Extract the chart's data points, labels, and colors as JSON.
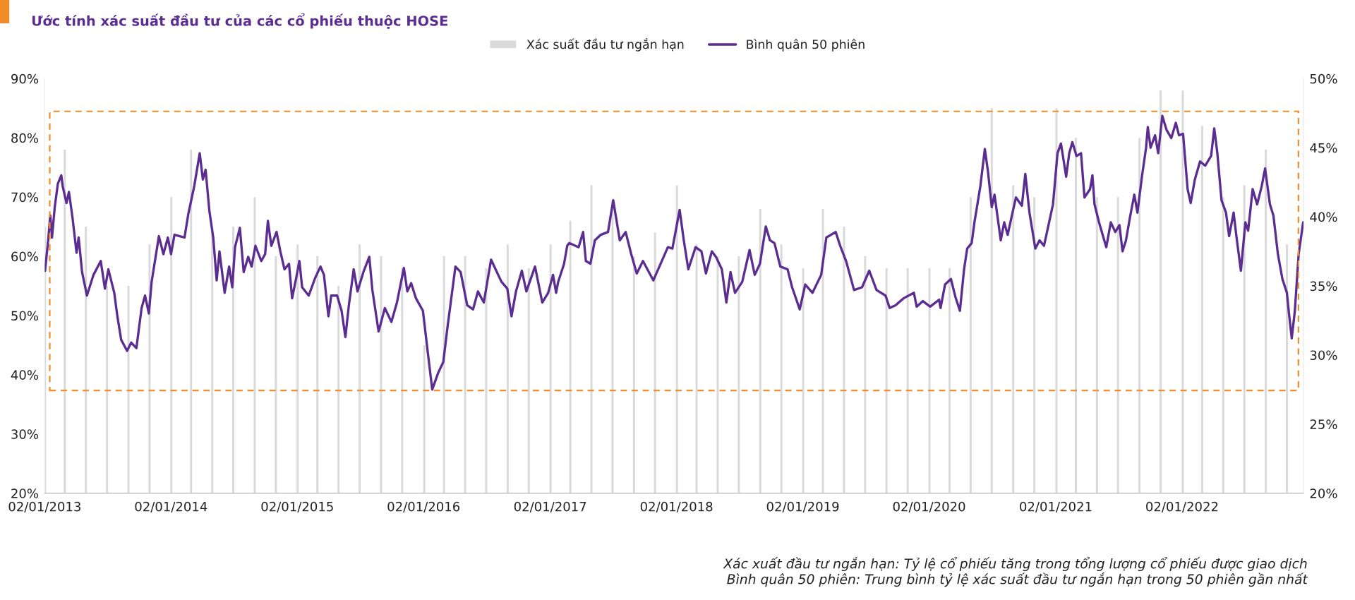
{
  "chart_data": {
    "type": "line",
    "title": "Ước tính xác suất đầu tư của các cổ phiếu thuộc HOSE",
    "annotations": [
      "Xác xuất đầu tư ngắn hạn: Tỷ lệ cổ phiếu tăng trong tổng lượng cổ phiếu được giao dịch",
      "Bình quân 50 phiên: Trung bình tỷ lệ xác suất đầu tư ngắn hạn trong 50 phiên gần nhất"
    ],
    "legend": "top",
    "grid": false,
    "marker": "none",
    "line_style": "solid",
    "xlim": [
      "2013-01-02",
      "2022-12-19"
    ],
    "xticks": [
      {
        "value": "2013-01-02",
        "label": "02/01/2013"
      },
      {
        "value": "2014-01-02",
        "label": "02/01/2014"
      },
      {
        "value": "2015-01-02",
        "label": "02/01/2015"
      },
      {
        "value": "2016-01-02",
        "label": "02/01/2016"
      },
      {
        "value": "2017-01-02",
        "label": "02/01/2017"
      },
      {
        "value": "2018-01-02",
        "label": "02/01/2018"
      },
      {
        "value": "2019-01-02",
        "label": "02/01/2019"
      },
      {
        "value": "2020-01-02",
        "label": "02/01/2020"
      },
      {
        "value": "2021-01-02",
        "label": "02/01/2021"
      },
      {
        "value": "2022-01-02",
        "label": "02/01/2022"
      }
    ],
    "ylim": [
      20,
      90
    ],
    "yticks": [
      {
        "value": 20,
        "label": "20%"
      },
      {
        "value": 30,
        "label": "30%"
      },
      {
        "value": 40,
        "label": "40%"
      },
      {
        "value": 50,
        "label": "50%"
      },
      {
        "value": 60,
        "label": "60%"
      },
      {
        "value": 70,
        "label": "70%"
      },
      {
        "value": 80,
        "label": "80%"
      },
      {
        "value": 90,
        "label": "90%"
      }
    ],
    "y2lim": [
      20,
      50
    ],
    "y2ticks": [
      {
        "value": 20,
        "label": "20%"
      },
      {
        "value": 25,
        "label": "25%"
      },
      {
        "value": 30,
        "label": "30%"
      },
      {
        "value": 35,
        "label": "35%"
      },
      {
        "value": 40,
        "label": "40%"
      },
      {
        "value": 45,
        "label": "45%"
      },
      {
        "value": 50,
        "label": "50%"
      }
    ],
    "series": [
      {
        "name": "Xác suất đầu tư ngắn hạn",
        "type": "bar",
        "color": "#d9d9d9",
        "x": [
          "2013-01-03",
          "2013-03-01",
          "2013-05-01",
          "2013-07-01",
          "2013-09-01",
          "2013-11-01",
          "2014-01-03",
          "2014-03-01",
          "2014-05-01",
          "2014-07-01",
          "2014-09-01",
          "2014-11-01",
          "2015-01-03",
          "2015-03-01",
          "2015-05-01",
          "2015-07-01",
          "2015-09-01",
          "2015-11-01",
          "2016-01-04",
          "2016-03-01",
          "2016-05-01",
          "2016-07-01",
          "2016-09-01",
          "2016-11-01",
          "2017-01-03",
          "2017-03-01",
          "2017-05-01",
          "2017-07-01",
          "2017-09-01",
          "2017-11-01",
          "2018-01-03",
          "2018-03-01",
          "2018-05-01",
          "2018-07-01",
          "2018-09-01",
          "2018-11-01",
          "2019-01-03",
          "2019-03-01",
          "2019-05-01",
          "2019-07-01",
          "2019-09-01",
          "2019-11-01",
          "2020-01-03",
          "2020-03-01",
          "2020-05-01",
          "2020-07-01",
          "2020-09-01",
          "2020-11-01",
          "2021-01-04",
          "2021-03-01",
          "2021-05-01",
          "2021-07-01",
          "2021-09-01",
          "2021-11-01",
          "2022-01-04",
          "2022-03-01",
          "2022-05-01",
          "2022-07-01",
          "2022-09-01",
          "2022-11-01"
        ],
        "values": [
          65,
          78,
          65,
          55,
          55,
          62,
          70,
          78,
          65,
          65,
          70,
          60,
          62,
          60,
          55,
          62,
          60,
          58,
          45,
          60,
          60,
          58,
          62,
          58,
          62,
          66,
          72,
          68,
          60,
          64,
          72,
          62,
          60,
          60,
          68,
          62,
          58,
          68,
          65,
          60,
          58,
          58,
          58,
          58,
          70,
          85,
          72,
          70,
          85,
          80,
          70,
          70,
          80,
          88,
          88,
          82,
          70,
          72,
          78,
          62
        ]
      },
      {
        "name": "Bình quân 50 phiên",
        "axis": "y2",
        "color": "#5c2d91",
        "x": [
          "2013-01-03",
          "2013-01-12",
          "2013-01-18",
          "2013-01-23",
          "2013-01-31",
          "2013-02-09",
          "2013-02-19",
          "2013-02-23",
          "2013-03-06",
          "2013-03-13",
          "2013-03-23",
          "2013-04-04",
          "2013-04-10",
          "2013-04-20",
          "2013-05-04",
          "2013-05-23",
          "2013-06-13",
          "2013-06-25",
          "2013-07-05",
          "2013-07-22",
          "2013-07-31",
          "2013-08-11",
          "2013-08-28",
          "2013-09-09",
          "2013-09-24",
          "2013-10-09",
          "2013-10-19",
          "2013-10-30",
          "2013-11-07",
          "2013-11-28",
          "2013-12-11",
          "2013-12-24",
          "2014-01-02",
          "2014-01-12",
          "2014-01-27",
          "2014-02-10",
          "2014-02-21",
          "2014-03-10",
          "2014-03-26",
          "2014-04-04",
          "2014-04-12",
          "2014-04-23",
          "2014-05-04",
          "2014-05-14",
          "2014-05-22",
          "2014-06-06",
          "2014-06-19",
          "2014-06-28",
          "2014-07-06",
          "2014-07-20",
          "2014-07-31",
          "2014-08-13",
          "2014-08-23",
          "2014-09-03",
          "2014-09-20",
          "2014-10-01",
          "2014-10-09",
          "2014-10-19",
          "2014-11-03",
          "2014-11-14",
          "2014-11-26",
          "2014-12-09",
          "2014-12-18",
          "2014-12-30",
          "2015-01-08",
          "2015-01-16",
          "2015-02-04",
          "2015-02-23",
          "2015-03-10",
          "2015-03-20",
          "2015-04-02",
          "2015-04-10",
          "2015-04-27",
          "2015-05-10",
          "2015-05-21",
          "2015-05-31",
          "2015-06-14",
          "2015-06-25",
          "2015-07-12",
          "2015-07-29",
          "2015-08-07",
          "2015-08-25",
          "2015-09-12",
          "2015-10-01",
          "2015-10-17",
          "2015-11-06",
          "2015-11-16",
          "2015-11-27",
          "2015-12-11",
          "2015-12-31",
          "2016-01-15",
          "2016-01-27",
          "2016-02-13",
          "2016-02-28",
          "2016-03-11",
          "2016-04-03",
          "2016-04-18",
          "2016-05-07",
          "2016-05-24",
          "2016-06-07",
          "2016-06-24",
          "2016-07-15",
          "2016-07-28",
          "2016-08-14",
          "2016-08-31",
          "2016-09-12",
          "2016-09-25",
          "2016-10-12",
          "2016-10-25",
          "2016-11-19",
          "2016-12-10",
          "2016-12-27",
          "2017-01-10",
          "2017-01-19",
          "2017-01-25",
          "2017-02-11",
          "2017-02-20",
          "2017-02-26",
          "2017-03-25",
          "2017-04-07",
          "2017-04-15",
          "2017-04-28",
          "2017-05-11",
          "2017-05-28",
          "2017-06-18",
          "2017-07-03",
          "2017-07-22",
          "2017-08-08",
          "2017-08-24",
          "2017-09-09",
          "2017-09-27",
          "2017-10-27",
          "2017-11-17",
          "2017-12-08",
          "2017-12-21",
          "2018-01-11",
          "2018-01-23",
          "2018-02-05",
          "2018-02-26",
          "2018-03-15",
          "2018-03-28",
          "2018-04-14",
          "2018-04-26",
          "2018-05-13",
          "2018-05-26",
          "2018-06-07",
          "2018-06-20",
          "2018-07-11",
          "2018-08-01",
          "2018-08-16",
          "2018-08-31",
          "2018-09-17",
          "2018-09-29",
          "2018-10-12",
          "2018-10-29",
          "2018-11-19",
          "2018-12-02",
          "2018-12-24",
          "2019-01-09",
          "2019-01-30",
          "2019-02-24",
          "2019-03-11",
          "2019-04-07",
          "2019-04-20",
          "2019-05-07",
          "2019-05-30",
          "2019-06-22",
          "2019-07-13",
          "2019-08-03",
          "2019-08-29",
          "2019-09-10",
          "2019-09-27",
          "2019-10-20",
          "2019-11-19",
          "2019-11-27",
          "2019-12-15",
          "2020-01-05",
          "2020-01-31",
          "2020-02-04",
          "2020-02-17",
          "2020-03-05",
          "2020-03-18",
          "2020-03-31",
          "2020-04-12",
          "2020-04-21",
          "2020-05-04",
          "2020-05-12",
          "2020-05-29",
          "2020-06-11",
          "2020-06-20",
          "2020-07-01",
          "2020-07-09",
          "2020-07-27",
          "2020-08-06",
          "2020-08-16",
          "2020-08-30",
          "2020-09-09",
          "2020-09-26",
          "2020-10-06",
          "2020-10-18",
          "2020-11-04",
          "2020-11-16",
          "2020-11-29",
          "2020-12-12",
          "2020-12-25",
          "2021-01-07",
          "2021-01-17",
          "2021-01-24",
          "2021-02-01",
          "2021-02-10",
          "2021-02-19",
          "2021-03-03",
          "2021-03-16",
          "2021-03-26",
          "2021-04-11",
          "2021-04-18",
          "2021-04-24",
          "2021-05-07",
          "2021-05-28",
          "2021-06-10",
          "2021-06-23",
          "2021-07-05",
          "2021-07-14",
          "2021-07-24",
          "2021-08-04",
          "2021-08-17",
          "2021-08-26",
          "2021-09-08",
          "2021-09-20",
          "2021-09-25",
          "2021-10-03",
          "2021-10-16",
          "2021-10-25",
          "2021-11-06",
          "2021-11-18",
          "2021-12-02",
          "2021-12-15",
          "2021-12-24",
          "2022-01-05",
          "2022-01-18",
          "2022-01-27",
          "2022-02-08",
          "2022-02-23",
          "2022-03-10",
          "2022-03-27",
          "2022-04-05",
          "2022-04-14",
          "2022-04-26",
          "2022-05-09",
          "2022-05-18",
          "2022-05-31",
          "2022-06-08",
          "2022-06-21",
          "2022-07-04",
          "2022-07-12",
          "2022-07-25",
          "2022-08-07",
          "2022-08-20",
          "2022-08-30",
          "2022-09-13",
          "2022-09-23",
          "2022-10-06",
          "2022-10-19",
          "2022-11-01",
          "2022-11-07",
          "2022-11-15",
          "2022-11-24",
          "2022-12-05",
          "2022-12-18"
        ],
        "values": [
          36.1,
          38.3,
          40.1,
          38.5,
          40.7,
          42.4,
          43.0,
          42.2,
          41.0,
          41.8,
          40.0,
          37.4,
          38.5,
          36.0,
          34.3,
          35.8,
          36.8,
          34.8,
          36.2,
          34.5,
          32.8,
          31.1,
          30.3,
          30.9,
          30.5,
          33.4,
          34.3,
          33.0,
          35.3,
          38.6,
          37.3,
          38.5,
          37.3,
          38.7,
          38.6,
          38.5,
          40.2,
          42.2,
          44.6,
          42.7,
          43.4,
          40.4,
          38.5,
          35.4,
          37.5,
          34.5,
          36.4,
          34.9,
          37.8,
          39.2,
          36.0,
          37.1,
          36.4,
          37.9,
          36.8,
          37.3,
          39.7,
          37.9,
          38.9,
          37.5,
          36.2,
          36.6,
          34.1,
          35.6,
          36.8,
          34.9,
          34.3,
          35.6,
          36.4,
          35.8,
          32.8,
          34.3,
          34.3,
          33.2,
          31.3,
          33.6,
          36.2,
          34.6,
          36.0,
          37.1,
          34.7,
          31.7,
          33.4,
          32.4,
          33.8,
          36.3,
          34.6,
          35.2,
          34.1,
          33.2,
          30.0,
          27.5,
          28.7,
          29.5,
          32.0,
          36.4,
          36.0,
          33.6,
          33.3,
          34.6,
          33.8,
          36.9,
          36.2,
          35.3,
          34.8,
          32.8,
          34.6,
          36.1,
          34.6,
          36.4,
          33.8,
          34.5,
          35.8,
          34.5,
          35.3,
          36.6,
          37.9,
          38.1,
          37.8,
          38.9,
          36.8,
          36.6,
          38.3,
          38.7,
          38.9,
          41.2,
          38.3,
          38.9,
          37.3,
          35.9,
          36.8,
          35.4,
          36.6,
          37.8,
          37.7,
          40.5,
          38.3,
          36.2,
          37.8,
          37.5,
          35.9,
          37.5,
          37.1,
          36.2,
          33.8,
          36.0,
          34.5,
          35.3,
          37.6,
          35.8,
          36.6,
          39.3,
          38.3,
          38.1,
          36.4,
          36.2,
          34.9,
          33.3,
          35.1,
          34.5,
          35.8,
          38.5,
          38.9,
          37.9,
          36.8,
          34.7,
          34.9,
          36.1,
          34.7,
          34.3,
          33.4,
          33.6,
          34.1,
          34.5,
          33.5,
          33.9,
          33.5,
          34.0,
          33.4,
          35.1,
          35.5,
          34.2,
          33.2,
          36.2,
          37.7,
          38.1,
          39.6,
          42.2,
          44.9,
          43.3,
          40.7,
          41.6,
          38.3,
          39.6,
          38.7,
          40.3,
          41.4,
          40.8,
          43.1,
          40.3,
          37.7,
          38.3,
          37.9,
          39.4,
          40.9,
          44.6,
          45.3,
          44.2,
          42.9,
          44.6,
          45.4,
          44.4,
          44.6,
          41.4,
          42.0,
          43.0,
          40.9,
          39.6,
          37.8,
          39.6,
          38.9,
          39.4,
          37.5,
          38.3,
          39.9,
          41.6,
          40.3,
          42.9,
          45.0,
          46.5,
          45.0,
          45.9,
          44.6,
          47.3,
          46.3,
          45.7,
          46.8,
          45.9,
          46.0,
          42.0,
          41.0,
          42.7,
          44.0,
          43.7,
          44.4,
          46.4,
          44.6,
          41.2,
          40.3,
          38.6,
          40.3,
          38.6,
          36.1,
          39.6,
          39.0,
          42.0,
          40.9,
          42.2,
          43.5,
          40.9,
          40.1,
          37.3,
          35.5,
          34.5,
          33.0,
          31.2,
          33.2,
          37.3,
          39.6
        ]
      }
    ]
  }
}
